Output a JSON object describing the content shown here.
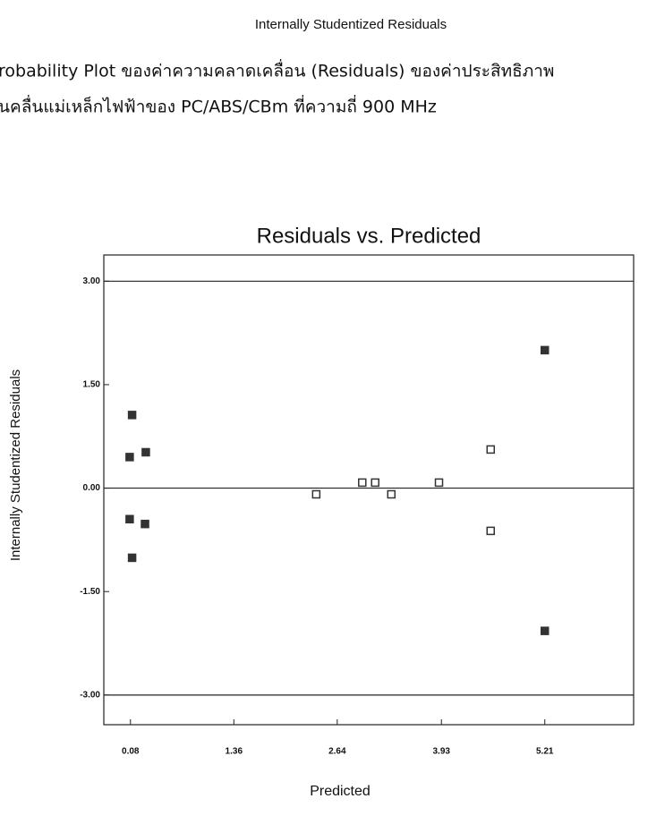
{
  "page_title": "Internally Studentized Residuals",
  "caption_lines": [
    "robability Plot ของค่าความคลาดเคลื่อน (Residuals) ของค่าประสิทธิภาพ",
    "นคลื่นแม่เหล็กไฟฟ้าของ PC/ABS/CBm ที่ความถี่ 900 MHz"
  ],
  "chart_data": {
    "type": "scatter",
    "title": "Residuals vs. Predicted",
    "x_label": "Predicted",
    "y_label": "Internally Studentized Residuals",
    "xlim": [
      -0.25,
      6.31
    ],
    "ylim": [
      -3.43,
      3.38
    ],
    "xticks": [
      0.08,
      1.36,
      2.64,
      3.93,
      5.21
    ],
    "yticks": [
      {
        "value": -3,
        "label": "-3.00"
      },
      {
        "value": -1.5,
        "label": "-1.50"
      },
      {
        "value": 0,
        "label": "0.00"
      },
      {
        "value": 1.5,
        "label": "1.50"
      },
      {
        "value": 3,
        "label": "3.00"
      }
    ],
    "hlines": [
      3,
      0,
      -3
    ],
    "series": [
      {
        "color": "#333333",
        "filled": true,
        "x": [
          0.1,
          0.07,
          0.27,
          0.07,
          0.26,
          0.1,
          5.21,
          5.21
        ],
        "values": [
          1.06,
          0.45,
          0.52,
          -0.45,
          -0.52,
          -1.01,
          2.0,
          -2.07
        ]
      },
      {
        "color": "#333333",
        "filled": false,
        "x": [
          2.38,
          2.95,
          3.11,
          3.31,
          3.9,
          4.54,
          4.54
        ],
        "values": [
          -0.09,
          0.08,
          0.08,
          -0.09,
          0.08,
          0.56,
          -0.62
        ]
      }
    ]
  }
}
